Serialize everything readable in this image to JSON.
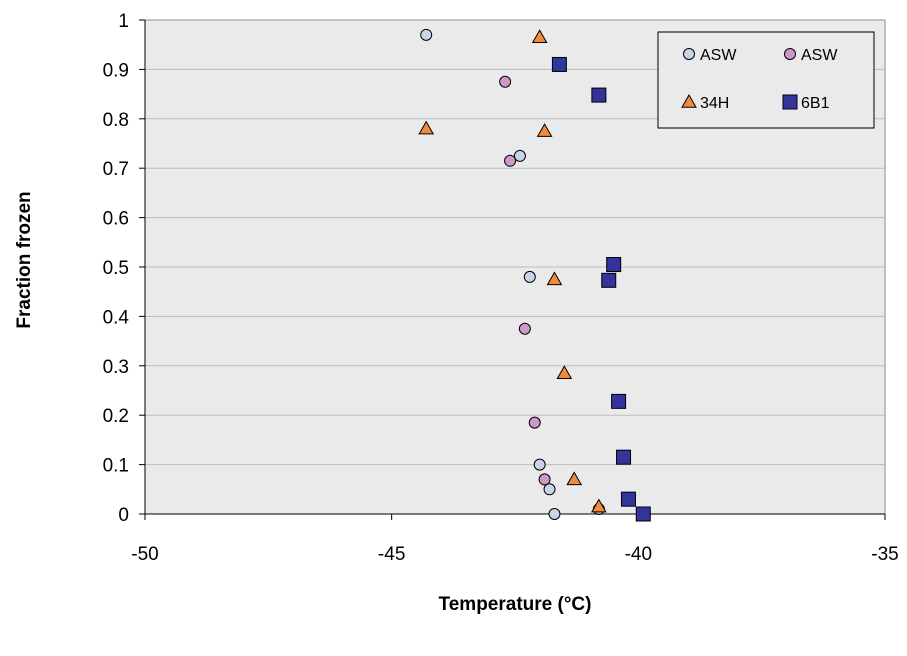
{
  "chart_data": {
    "type": "scatter",
    "title": "",
    "xlabel": "Temperature (°C)",
    "ylabel": "Fraction frozen",
    "xlim": [
      -50,
      -35
    ],
    "ylim": [
      0,
      1
    ],
    "xticks": [
      -50,
      -45,
      -40,
      -35
    ],
    "xtick_labels": [
      "-50",
      "-45",
      "-40",
      "-35"
    ],
    "yticks": [
      0,
      0.1,
      0.2,
      0.3,
      0.4,
      0.5,
      0.6,
      0.7,
      0.8,
      0.9,
      1
    ],
    "ytick_labels": [
      "0",
      "0.1",
      "0.2",
      "0.3",
      "0.4",
      "0.5",
      "0.6",
      "0.7",
      "0.8",
      "0.9",
      "1"
    ],
    "grid": "horizontal",
    "plot_background": "#eaeaea",
    "legend_position": "top-right",
    "series": [
      {
        "name": "ASW",
        "marker": "circle",
        "color": "#c9d3ea",
        "x": [
          -44.3,
          -42.4,
          -42.2,
          -42.0,
          -41.8,
          -41.7
        ],
        "y": [
          0.97,
          0.725,
          0.48,
          0.1,
          0.05,
          0.0
        ]
      },
      {
        "name": "ASW",
        "marker": "circle",
        "color": "#cf98c9",
        "x": [
          -42.7,
          -42.6,
          -42.3,
          -42.1,
          -41.9,
          -40.8
        ],
        "y": [
          0.875,
          0.715,
          0.375,
          0.185,
          0.07,
          0.01
        ]
      },
      {
        "name": "34H",
        "marker": "triangle",
        "color": "#f08a3c",
        "x": [
          -42.0,
          -44.3,
          -41.9,
          -41.7,
          -41.5,
          -41.3,
          -40.8
        ],
        "y": [
          0.965,
          0.78,
          0.775,
          0.475,
          0.285,
          0.07,
          0.015
        ]
      },
      {
        "name": "6B1",
        "marker": "square",
        "color": "#33339c",
        "x": [
          -41.6,
          -40.8,
          -40.5,
          -40.6,
          -40.4,
          -40.3,
          -40.2,
          -39.9
        ],
        "y": [
          0.91,
          0.848,
          0.505,
          0.473,
          0.228,
          0.115,
          0.03,
          0.0
        ]
      }
    ]
  }
}
